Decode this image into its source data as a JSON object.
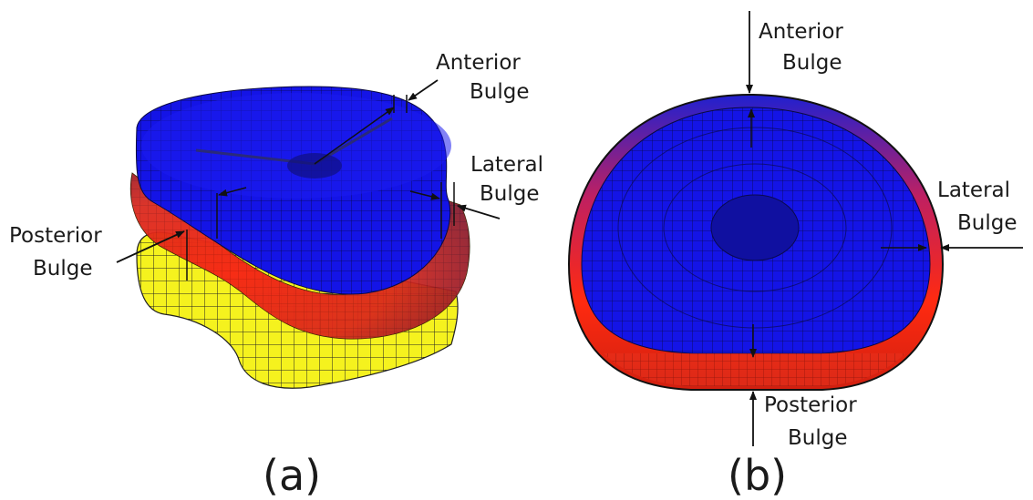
{
  "panels": [
    {
      "caption": "(a)",
      "labels": {
        "anterior": [
          "Anterior",
          "Bulge"
        ],
        "lateral": [
          "Lateral",
          "Bulge"
        ],
        "posterior": [
          "Posterior",
          "Bulge"
        ]
      }
    },
    {
      "caption": "(b)",
      "labels": {
        "anterior": [
          "Anterior",
          "Bulge"
        ],
        "lateral": [
          "Lateral",
          "Bulge"
        ],
        "posterior": [
          "Posterior",
          "Bulge"
        ]
      }
    }
  ],
  "colors": {
    "mesh_blue": "#1414e6",
    "bulge_red": "#e8321e",
    "base_yellow": "#f5f21e",
    "mesh_line": "#111111",
    "text": "#1a1a1a"
  }
}
